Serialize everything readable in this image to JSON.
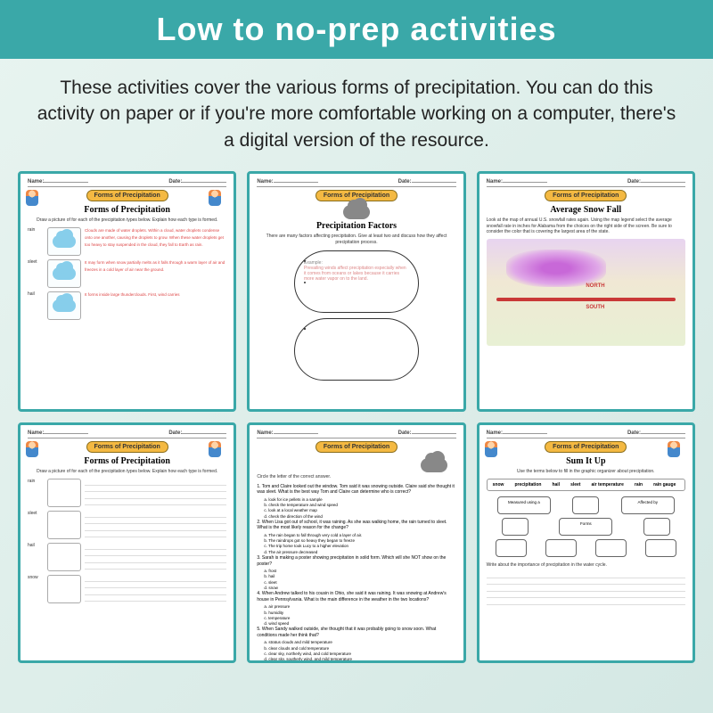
{
  "header": {
    "title": "Low to no-prep activities"
  },
  "description": "These activities cover the various forms of precipitation. You can do this activity on paper or if you're more comfortable working on a computer, there's a digital version of the resource.",
  "fields": {
    "name": "Name:",
    "date": "Date:"
  },
  "badge": "Forms of Precipitation",
  "sheets": [
    {
      "title": "Forms of Precipitation",
      "sub": "Draw a picture of for each of the precipitation types below. Explain how each type is formed.",
      "rows": [
        {
          "label": "rain",
          "text": "Clouds are made of water droplets. Within a cloud, water droplets condense onto one another, causing the droplets to grow. When these water droplets get too heavy to stay suspended in the cloud, they fall to Earth as rain."
        },
        {
          "label": "sleet",
          "text": "It may form when snow partially melts as it falls through a warm layer of air and freezes in a cold layer of air near the ground."
        },
        {
          "label": "hail",
          "text": "It forms inside large thunderclouds. First, wind carries"
        }
      ]
    },
    {
      "title": "Precipitation Factors",
      "sub": "There are many factors affecting precipitation. Give at least two and discuss how they affect precipitation process.",
      "example_label": "Example:",
      "example_text": "Prevailing winds affect precipitation especially when it comes from oceans or lakes because it carries more water vapor on to the land."
    },
    {
      "title": "Average Snow Fall",
      "sub": "Look at the map of annual U.S. snowfall rates again. Using the map legend select the average snowfall rate in inches for Alabama from the choices on the right side of the screen. Be sure to consider the color that is covering the largest area of the state.",
      "map_north": "NORTH",
      "map_south": "SOUTH"
    },
    {
      "title": "Forms of Precipitation",
      "sub": "Draw a picture of for each of the precipitation types below. Explain how each type is formed.",
      "rows": [
        {
          "label": "rain"
        },
        {
          "label": "sleet"
        },
        {
          "label": "hail"
        },
        {
          "label": "snow"
        }
      ]
    },
    {
      "title": "",
      "sub": "Circle the letter of the correct answer.",
      "questions": [
        {
          "q": "1. Tom and Claire looked out the window. Tom said it was snowing outside. Claire said she thought it was sleet. What is the best way Tom and Claire can determine who is correct?",
          "opts": [
            "a. look for ice pellets in a sample",
            "b. check the temperature and wind speed",
            "c. look at a local weather map",
            "d. check the direction of the wind"
          ]
        },
        {
          "q": "2. When Lisa got out of school, it was raining. As she was walking home, the rain turned to sleet. What is the most likely reason for the change?",
          "opts": [
            "a. The rain began to fall through very cold a layer of air.",
            "b. The raindrops got so heavy they began to freeze",
            "c. The trip home took Lucy to a higher elevation",
            "d. The air pressure decreased"
          ]
        },
        {
          "q": "3. Sarah is making a poster showing precipitation in solid form. Which will she NOT show on the poster?",
          "opts": [
            "a. frost",
            "b. hail",
            "c. sleet",
            "d. snow"
          ]
        },
        {
          "q": "4. When Andrew talked to his cousin in Ohio, she said it was raining. It was snowing at Andrew's house in Pennsylvania. What is the main difference in the weather in the two locations?",
          "opts": [
            "a. air pressure",
            "b. humidity",
            "c. temperature",
            "d. wind speed"
          ]
        },
        {
          "q": "5. When Sandy walked outside, she thought that it was probably going to snow soon. What conditions made her think that?",
          "opts": [
            "a. stratus clouds and mild temperature",
            "b. clear clouds and cold temperature",
            "c. clear sky, northerly wind, and cold temperature",
            "d. clear sky, southerly wind, and mild temperature"
          ]
        }
      ]
    },
    {
      "title": "Sum It Up",
      "sub": "Use the terms below to fill in the graphic organizer about precipitation.",
      "terms": [
        "snow",
        "precipitation",
        "hail",
        "sleet",
        "air temperature",
        "rain",
        "rain gauge"
      ],
      "org": {
        "left": "Measured using a",
        "right": "Affected by",
        "mid": "Forms"
      },
      "footer": "Write about the importance of precipitation in the water cycle."
    }
  ],
  "colors": {
    "accent": "#3aa8a8",
    "badge": "#f4b942",
    "red_text": "#d44444"
  }
}
